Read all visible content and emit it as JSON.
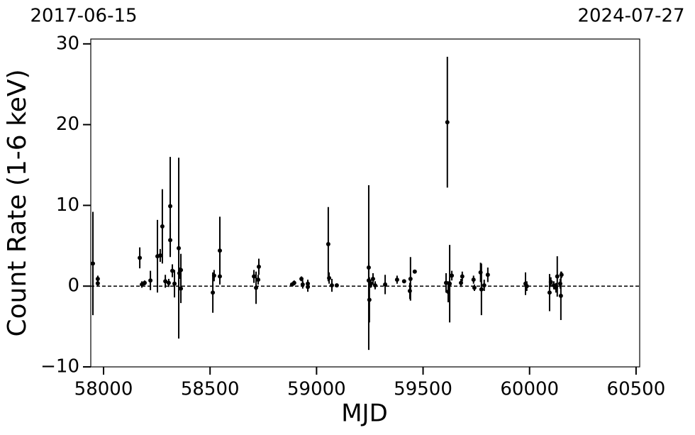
{
  "chart_data": {
    "type": "errorbar",
    "top_labels": [
      "2017-06-15",
      "2024-07-27"
    ],
    "x_label": "MJD",
    "y_label": "Count Rate (1-6 keV)",
    "x": [
      57950,
      57973,
      57973,
      58170,
      58180,
      58193,
      58220,
      58253,
      58266,
      58276,
      58290,
      58306,
      58313,
      58313,
      58323,
      58333,
      58353,
      58356,
      58363,
      58363,
      58513,
      58519,
      58546,
      58546,
      58706,
      58716,
      58729,
      58726,
      58885,
      58895,
      58929,
      58935,
      58959,
      58959,
      59055,
      59059,
      59072,
      59095,
      59245,
      59248,
      59245,
      59255,
      59265,
      59275,
      59322,
      59378,
      59411,
      59438,
      59441,
      59461,
      59614,
      59608,
      59618,
      59625,
      59635,
      59678,
      59684,
      59737,
      59741,
      59770,
      59774,
      59787,
      59804,
      59981,
      59987,
      60094,
      60100,
      60114,
      60124,
      60130,
      60144,
      60147,
      60150
    ],
    "series": [
      {
        "color": "#000000",
        "values": [
          2.8,
          0.35,
          0.9,
          3.5,
          0.2,
          0.4,
          0.7,
          3.7,
          3.8,
          7.4,
          0.6,
          0.4,
          9.9,
          5.7,
          1.9,
          0.3,
          4.7,
          1.6,
          2.0,
          -0.3,
          -0.8,
          1.3,
          4.4,
          1.2,
          1.2,
          -0.2,
          2.4,
          0.8,
          0.2,
          0.4,
          0.9,
          0.2,
          -0.1,
          0.3,
          5.2,
          1.0,
          0.1,
          0.1,
          2.3,
          -1.7,
          0.7,
          0.3,
          0.9,
          0.1,
          0.2,
          0.8,
          0.6,
          -0.6,
          0.9,
          1.8,
          20.3,
          0.4,
          -0.7,
          0.3,
          1.3,
          0.4,
          1.2,
          0.8,
          -0.2,
          1.7,
          -0.4,
          0.1,
          1.4,
          0.3,
          0.0,
          -0.8,
          0.5,
          0.1,
          -0.2,
          1.2,
          0.3,
          -1.2,
          1.4
        ],
        "errors": [
          6.4,
          0.3,
          0.4,
          1.3,
          0.4,
          0.3,
          1.2,
          4.5,
          0.8,
          4.6,
          0.8,
          0.5,
          6.1,
          2.1,
          0.8,
          1.7,
          11.2,
          0.7,
          2.0,
          1.8,
          2.5,
          0.7,
          4.2,
          1.0,
          0.8,
          2.0,
          1.0,
          0.6,
          0.2,
          0.3,
          0.3,
          0.5,
          0.6,
          0.5,
          4.6,
          0.7,
          0.8,
          0.2,
          10.2,
          2.8,
          2.2,
          0.5,
          0.7,
          0.5,
          1.2,
          0.5,
          0.2,
          1.0,
          2.7,
          0.2,
          8.1,
          1.2,
          1.3,
          4.8,
          0.6,
          0.5,
          0.6,
          0.5,
          0.4,
          1.2,
          3.2,
          0.7,
          0.9,
          1.4,
          0.6,
          2.3,
          0.6,
          0.5,
          0.6,
          2.5,
          0.6,
          3.0,
          0.4
        ]
      }
    ],
    "reference_line": 0,
    "xlim": [
      57940,
      60517
    ],
    "ylim": [
      -10,
      30.6
    ],
    "xticks": [
      58000,
      58500,
      59000,
      59500,
      60000,
      60500
    ],
    "yticks": [
      {
        "value": -10,
        "label": "−10"
      },
      0,
      10,
      20,
      30
    ]
  }
}
